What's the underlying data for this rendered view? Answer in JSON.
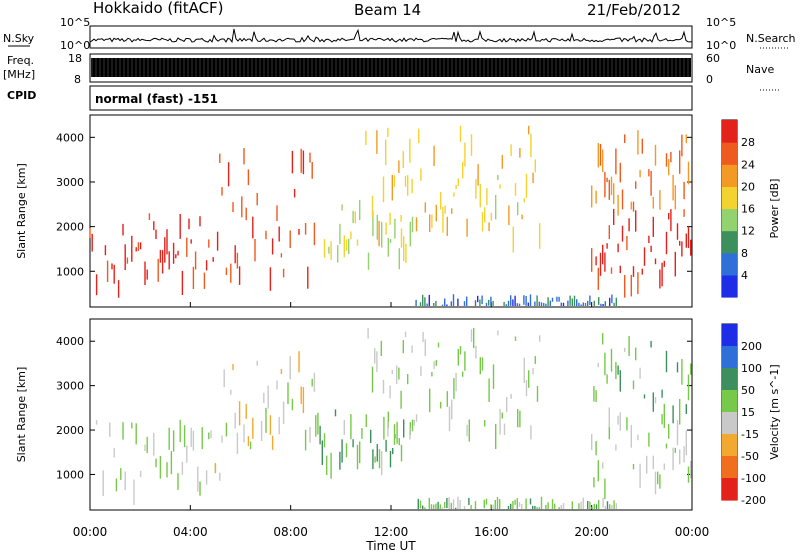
{
  "header": {
    "station": "Hokkaido (fitACF)",
    "beam": "Beam 14",
    "date": "21/Feb/2012"
  },
  "side_labels": {
    "nsky": "N.Sky",
    "nsearch": "N.Search",
    "freq": "Freq.",
    "freq_unit": "[MHz]",
    "nave": "Nave",
    "cpid": "CPID"
  },
  "noise_ticks": {
    "left": [
      "10^5",
      "10^0"
    ],
    "right": [
      "10^5",
      "10^0"
    ]
  },
  "freq_ticks": {
    "left": [
      "18",
      "8"
    ],
    "right": [
      "60",
      "0"
    ]
  },
  "cpid_text": "normal (fast) -151",
  "colors": {
    "frame": "#000000",
    "freq_fill": "#000000"
  },
  "chart_data": [
    {
      "type": "heatmap",
      "title": "",
      "xlabel": "Time UT",
      "ylabel": "Slant Range [km]",
      "x_ticks": [
        "00:00",
        "04:00",
        "08:00",
        "12:00",
        "16:00",
        "20:00",
        "00:00"
      ],
      "xlim_hours": [
        0,
        24
      ],
      "ylim": [
        200,
        4500
      ],
      "y_ticks": [
        1000,
        2000,
        3000,
        4000
      ],
      "colorbar": {
        "label": "Power [dB]",
        "ticks": [
          4,
          8,
          12,
          16,
          20,
          24,
          28
        ],
        "range": [
          0,
          30
        ],
        "colors": [
          "#1d2ee6",
          "#2f6fd8",
          "#3d8f5d",
          "#93d36f",
          "#f2d32f",
          "#f39a25",
          "#ef5a1e",
          "#e3221b"
        ]
      },
      "echo_regions": [
        {
          "t_start": 0,
          "t_end": 5,
          "r_start": 800,
          "r_end": 2300,
          "level": 28
        },
        {
          "t_start": 5,
          "t_end": 9,
          "r_start": 1000,
          "r_end": 3800,
          "level": 26
        },
        {
          "t_start": 9,
          "t_end": 13,
          "r_start": 1400,
          "r_end": 2600,
          "level": 14
        },
        {
          "t_start": 11,
          "t_end": 18,
          "r_start": 2000,
          "r_end": 4300,
          "level": 18
        },
        {
          "t_start": 13,
          "t_end": 21,
          "r_start": 250,
          "r_end": 500,
          "level": 6
        },
        {
          "t_start": 20,
          "t_end": 24,
          "r_start": 900,
          "r_end": 2400,
          "level": 28
        },
        {
          "t_start": 20,
          "t_end": 24,
          "r_start": 2400,
          "r_end": 4200,
          "level": 22
        }
      ]
    },
    {
      "type": "heatmap",
      "title": "",
      "xlabel": "Time UT",
      "ylabel": "Slant Range [km]",
      "x_ticks": [
        "00:00",
        "04:00",
        "08:00",
        "12:00",
        "16:00",
        "20:00",
        "00:00"
      ],
      "xlim_hours": [
        0,
        24
      ],
      "ylim": [
        200,
        4500
      ],
      "y_ticks": [
        1000,
        2000,
        3000,
        4000
      ],
      "colorbar": {
        "label": "Velocity [m s^-1]",
        "ticks": [
          200,
          100,
          50,
          15,
          -15,
          -50,
          -100,
          -200
        ],
        "range": [
          -250,
          250
        ],
        "colors": [
          "#1d2ee6",
          "#2f6fd8",
          "#3d8f5d",
          "#78c84a",
          "#c9c9c9",
          "#f2a92f",
          "#ef6f1e",
          "#e3221b"
        ]
      },
      "echo_regions": [
        {
          "t_start": 0,
          "t_end": 5,
          "r_start": 800,
          "r_end": 2300,
          "level": 0
        },
        {
          "t_start": 5,
          "t_end": 9,
          "r_start": 1000,
          "r_end": 3800,
          "level": -40
        },
        {
          "t_start": 9,
          "t_end": 13,
          "r_start": 1400,
          "r_end": 2600,
          "level": 40
        },
        {
          "t_start": 11,
          "t_end": 18,
          "r_start": 2000,
          "r_end": 4300,
          "level": 0
        },
        {
          "t_start": 13,
          "t_end": 21,
          "r_start": 250,
          "r_end": 500,
          "level": 30
        },
        {
          "t_start": 20,
          "t_end": 24,
          "r_start": 900,
          "r_end": 2400,
          "level": 0
        },
        {
          "t_start": 20,
          "t_end": 24,
          "r_start": 2400,
          "r_end": 4200,
          "level": 35
        }
      ]
    }
  ]
}
